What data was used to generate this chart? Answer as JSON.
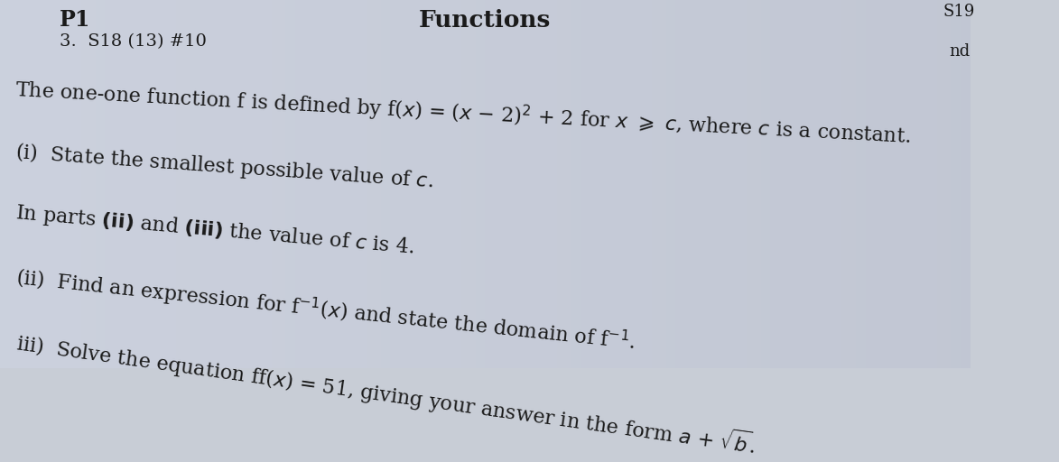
{
  "bg_color": "#c8cdd6",
  "text_color": "#1a1a1a",
  "title": "Functions",
  "p1_label": "P1",
  "subtitle": "3.  S18 (13) #10",
  "corner_text": "S19",
  "side_text": "nd",
  "line1a": "he one-one function f is defined by f(",
  "line1b": "x",
  "line1c": ") = (",
  "line1d": "x",
  "line1e": " − 2)² + 2 for ",
  "line1f": "x",
  "line1g": " ≥ ",
  "line1h": "c",
  "line1i": ", where ",
  "line1j": "c",
  "line1k": " is a constant.",
  "line2": "(i)  State the smallest possible value of ",
  "line2c": "c",
  "line2end": ".",
  "line3a": "In parts (ii) and (iii) the value of ",
  "line3b": "c",
  "line3c": " is 4.",
  "line4a": "(ii)  Find an expression for f",
  "line4b": "⁻¹",
  "line4c": "(",
  "line4d": "x",
  "line4e": ") and state the domain of f",
  "line4f": "⁻¹",
  "line4g": ".",
  "line5a": "iii)  Solve the equation ff(",
  "line5b": "x",
  "line5c": ") = 51, giving your answer in the form ",
  "line5d": "a",
  "line5e": " + √",
  "line5f": "b",
  "line5g": ".",
  "title_fontsize": 19,
  "p1_fontsize": 17,
  "subtitle_fontsize": 14,
  "body_fontsize": 16,
  "small_fontsize": 13,
  "rotation_line1": -3,
  "rotation_line2": -4,
  "rotation_line3": -5,
  "rotation_line4": -6,
  "rotation_line5": -8
}
